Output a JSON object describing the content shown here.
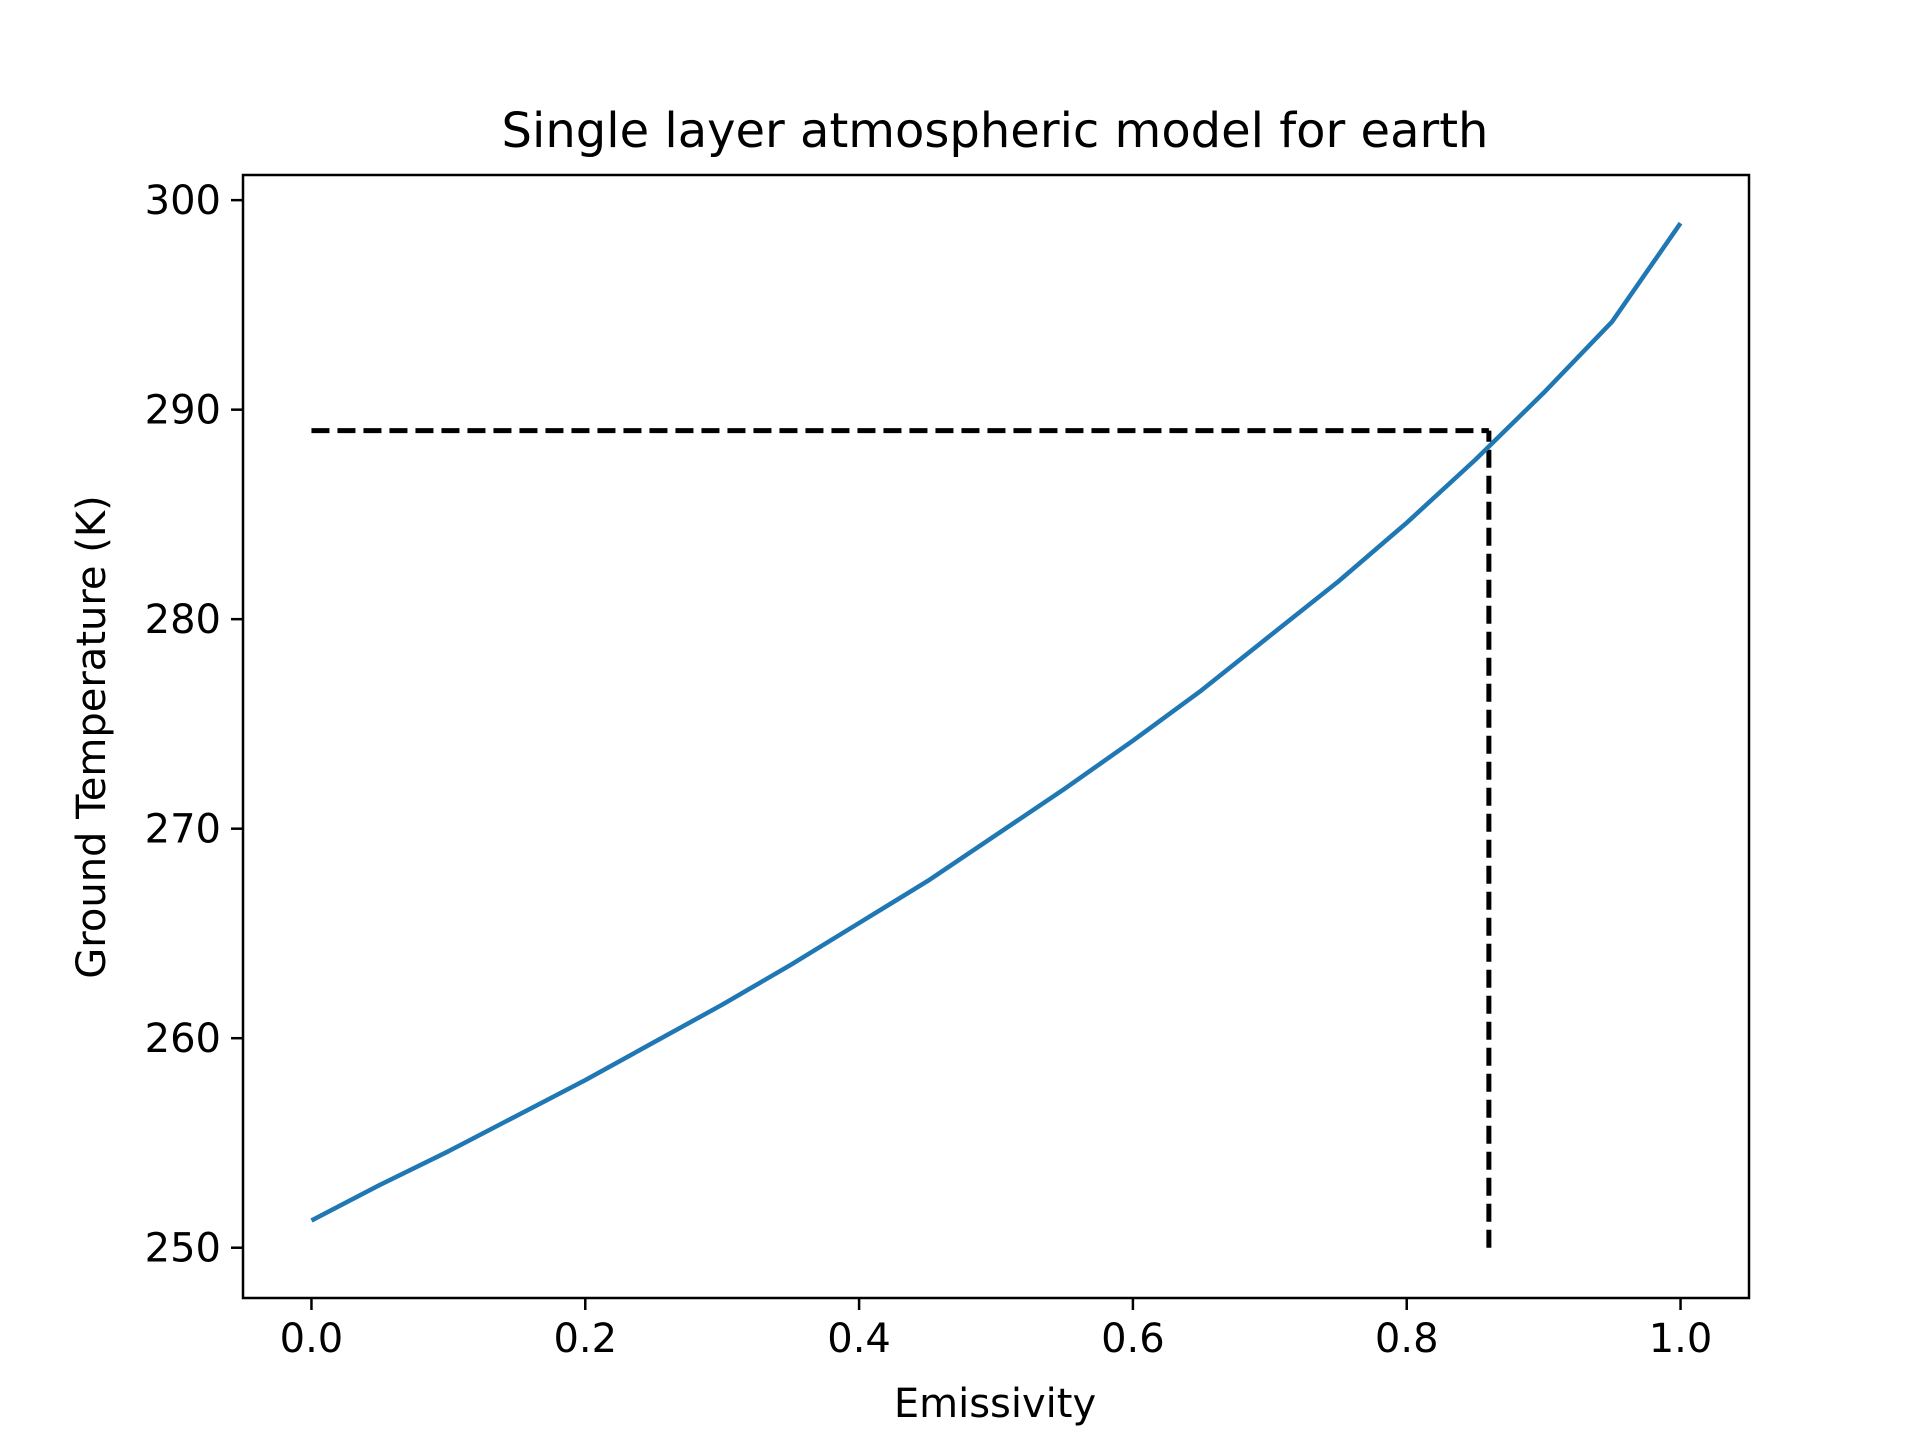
{
  "chart_data": {
    "type": "line",
    "title": "Single layer atmospheric model for earth",
    "xlabel": "Emissivity",
    "ylabel": "Ground Temperature (K)",
    "xlim": [
      -0.05,
      1.05
    ],
    "ylim": [
      247.6,
      301.2
    ],
    "xticks": [
      0.0,
      0.2,
      0.4,
      0.6,
      0.8,
      1.0
    ],
    "xtick_labels": [
      "0.0",
      "0.2",
      "0.4",
      "0.6",
      "0.8",
      "1.0"
    ],
    "yticks": [
      250,
      260,
      270,
      280,
      290,
      300
    ],
    "ytick_labels": [
      "250",
      "260",
      "270",
      "280",
      "290",
      "300"
    ],
    "grid": false,
    "series": [
      {
        "color": "#1f77b4",
        "x": [
          0.0,
          0.05,
          0.1,
          0.15,
          0.2,
          0.25,
          0.3,
          0.35,
          0.4,
          0.45,
          0.5,
          0.55,
          0.6,
          0.65,
          0.7,
          0.75,
          0.8,
          0.85,
          0.9,
          0.95,
          1.0
        ],
        "y": [
          251.3,
          253.0,
          254.6,
          256.3,
          258.0,
          259.8,
          261.6,
          263.5,
          265.5,
          267.5,
          269.7,
          271.9,
          274.2,
          276.6,
          279.2,
          281.8,
          284.6,
          287.6,
          290.8,
          294.2,
          298.9
        ]
      }
    ],
    "reference_lines": [
      {
        "style": "dashed",
        "color": "#000000",
        "x": [
          0.0,
          0.86
        ],
        "y": [
          289.0,
          289.0
        ]
      },
      {
        "style": "dashed",
        "color": "#000000",
        "x": [
          0.86,
          0.86
        ],
        "y": [
          250.0,
          289.0
        ]
      }
    ]
  }
}
